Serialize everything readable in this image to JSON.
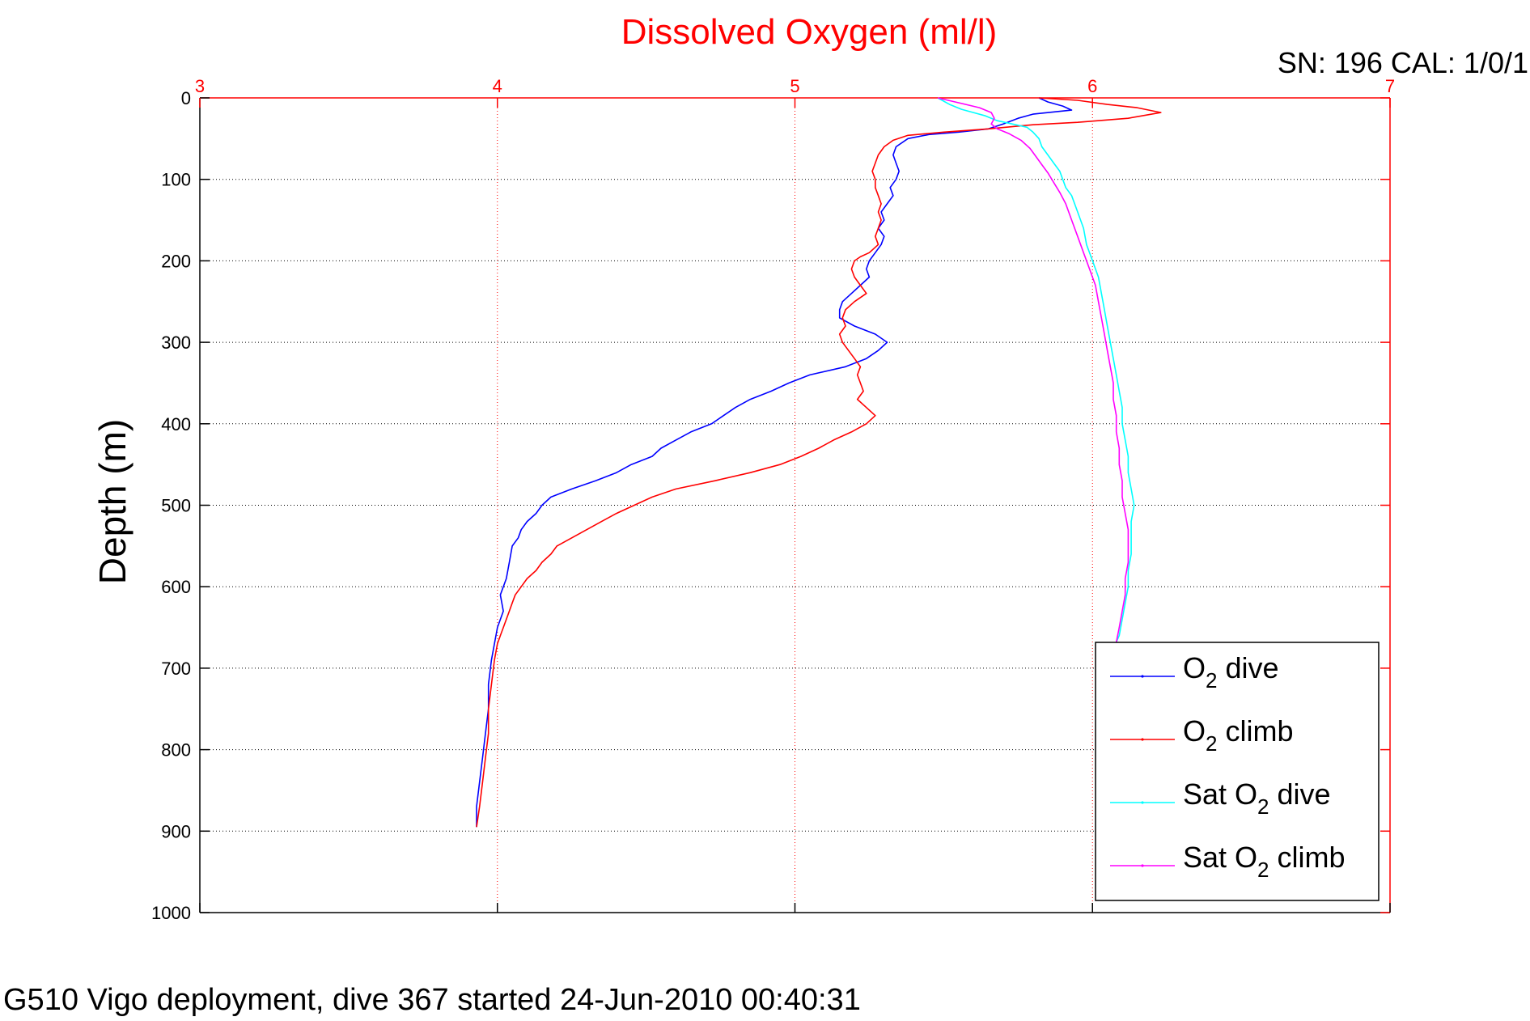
{
  "chart_data": {
    "type": "line",
    "title": "Dissolved Oxygen (ml/l)",
    "cal_label": "SN: 196  CAL: 1/0/1",
    "ylabel": "Depth (m)",
    "footer": "G510 Vigo deployment, dive 367 started 24-Jun-2010 00:40:31",
    "xlim": [
      3,
      7
    ],
    "ylim": [
      0,
      1000
    ],
    "y_reversed": true,
    "x_axis_position": "top",
    "grid": true,
    "legend_position": "bottom-right",
    "xticks": [
      3,
      4,
      5,
      6,
      7
    ],
    "xtick_labels": [
      "3",
      "4",
      "5",
      "6",
      "7"
    ],
    "yticks": [
      0,
      100,
      200,
      300,
      400,
      500,
      600,
      700,
      800,
      900,
      1000
    ],
    "ytick_labels": [
      "0",
      "100",
      "200",
      "300",
      "400",
      "500",
      "600",
      "700",
      "800",
      "900",
      "1000"
    ],
    "colors": {
      "title": "#ff0000",
      "x_axis": "#ff0000",
      "grid_x": "#ff0000",
      "grid_y": "#000000",
      "text": "#000000"
    },
    "series": [
      {
        "legend_main": "O",
        "legend_sub": "2",
        "legend_suffix": " dive",
        "color": "#0000ff",
        "points": [
          [
            5.82,
            0
          ],
          [
            5.85,
            5
          ],
          [
            5.9,
            10
          ],
          [
            5.93,
            15
          ],
          [
            5.8,
            20
          ],
          [
            5.75,
            25
          ],
          [
            5.7,
            32
          ],
          [
            5.65,
            38
          ],
          [
            5.55,
            42
          ],
          [
            5.45,
            45
          ],
          [
            5.38,
            50
          ],
          [
            5.34,
            60
          ],
          [
            5.33,
            70
          ],
          [
            5.34,
            80
          ],
          [
            5.35,
            90
          ],
          [
            5.34,
            100
          ],
          [
            5.32,
            110
          ],
          [
            5.33,
            120
          ],
          [
            5.31,
            130
          ],
          [
            5.29,
            140
          ],
          [
            5.3,
            150
          ],
          [
            5.28,
            160
          ],
          [
            5.3,
            170
          ],
          [
            5.29,
            180
          ],
          [
            5.27,
            190
          ],
          [
            5.25,
            200
          ],
          [
            5.24,
            210
          ],
          [
            5.25,
            220
          ],
          [
            5.22,
            230
          ],
          [
            5.19,
            240
          ],
          [
            5.16,
            250
          ],
          [
            5.15,
            260
          ],
          [
            5.15,
            270
          ],
          [
            5.2,
            280
          ],
          [
            5.27,
            290
          ],
          [
            5.31,
            300
          ],
          [
            5.28,
            310
          ],
          [
            5.24,
            320
          ],
          [
            5.17,
            330
          ],
          [
            5.05,
            340
          ],
          [
            4.98,
            350
          ],
          [
            4.92,
            360
          ],
          [
            4.85,
            370
          ],
          [
            4.8,
            380
          ],
          [
            4.76,
            390
          ],
          [
            4.72,
            400
          ],
          [
            4.65,
            410
          ],
          [
            4.6,
            420
          ],
          [
            4.55,
            430
          ],
          [
            4.52,
            440
          ],
          [
            4.45,
            450
          ],
          [
            4.4,
            460
          ],
          [
            4.33,
            470
          ],
          [
            4.25,
            480
          ],
          [
            4.18,
            490
          ],
          [
            4.15,
            500
          ],
          [
            4.13,
            510
          ],
          [
            4.1,
            520
          ],
          [
            4.08,
            530
          ],
          [
            4.07,
            540
          ],
          [
            4.05,
            550
          ],
          [
            4.04,
            570
          ],
          [
            4.03,
            590
          ],
          [
            4.01,
            610
          ],
          [
            4.02,
            630
          ],
          [
            4.0,
            650
          ],
          [
            3.99,
            670
          ],
          [
            3.98,
            690
          ],
          [
            3.97,
            720
          ],
          [
            3.97,
            750
          ],
          [
            3.96,
            780
          ],
          [
            3.95,
            810
          ],
          [
            3.94,
            840
          ],
          [
            3.93,
            870
          ],
          [
            3.93,
            895
          ]
        ]
      },
      {
        "legend_main": "O",
        "legend_sub": "2",
        "legend_suffix": " climb",
        "color": "#ff0000",
        "points": [
          [
            5.82,
            0
          ],
          [
            5.95,
            3
          ],
          [
            6.05,
            8
          ],
          [
            6.15,
            12
          ],
          [
            6.23,
            18
          ],
          [
            6.12,
            25
          ],
          [
            5.95,
            30
          ],
          [
            5.8,
            33
          ],
          [
            5.65,
            38
          ],
          [
            5.5,
            42
          ],
          [
            5.38,
            46
          ],
          [
            5.33,
            52
          ],
          [
            5.3,
            60
          ],
          [
            5.28,
            70
          ],
          [
            5.27,
            80
          ],
          [
            5.26,
            90
          ],
          [
            5.27,
            100
          ],
          [
            5.27,
            110
          ],
          [
            5.28,
            120
          ],
          [
            5.29,
            130
          ],
          [
            5.28,
            140
          ],
          [
            5.29,
            150
          ],
          [
            5.28,
            160
          ],
          [
            5.27,
            170
          ],
          [
            5.28,
            180
          ],
          [
            5.25,
            190
          ],
          [
            5.22,
            195
          ],
          [
            5.2,
            200
          ],
          [
            5.19,
            210
          ],
          [
            5.2,
            220
          ],
          [
            5.22,
            230
          ],
          [
            5.24,
            240
          ],
          [
            5.2,
            250
          ],
          [
            5.17,
            260
          ],
          [
            5.16,
            270
          ],
          [
            5.17,
            280
          ],
          [
            5.15,
            290
          ],
          [
            5.16,
            300
          ],
          [
            5.18,
            310
          ],
          [
            5.2,
            320
          ],
          [
            5.22,
            330
          ],
          [
            5.21,
            340
          ],
          [
            5.22,
            350
          ],
          [
            5.23,
            360
          ],
          [
            5.21,
            370
          ],
          [
            5.24,
            380
          ],
          [
            5.27,
            390
          ],
          [
            5.24,
            400
          ],
          [
            5.19,
            410
          ],
          [
            5.13,
            420
          ],
          [
            5.08,
            430
          ],
          [
            5.02,
            440
          ],
          [
            4.95,
            450
          ],
          [
            4.85,
            460
          ],
          [
            4.73,
            470
          ],
          [
            4.6,
            480
          ],
          [
            4.52,
            490
          ],
          [
            4.46,
            500
          ],
          [
            4.4,
            510
          ],
          [
            4.35,
            520
          ],
          [
            4.3,
            530
          ],
          [
            4.25,
            540
          ],
          [
            4.2,
            550
          ],
          [
            4.18,
            560
          ],
          [
            4.15,
            570
          ],
          [
            4.13,
            580
          ],
          [
            4.1,
            590
          ],
          [
            4.08,
            600
          ],
          [
            4.06,
            610
          ],
          [
            4.05,
            620
          ],
          [
            4.04,
            630
          ],
          [
            4.03,
            640
          ],
          [
            4.02,
            650
          ],
          [
            4.01,
            660
          ],
          [
            4.0,
            670
          ],
          [
            3.99,
            690
          ],
          [
            3.98,
            720
          ],
          [
            3.97,
            750
          ],
          [
            3.97,
            780
          ],
          [
            3.96,
            810
          ],
          [
            3.95,
            840
          ],
          [
            3.94,
            870
          ],
          [
            3.93,
            895
          ]
        ]
      },
      {
        "legend_main": "Sat O",
        "legend_sub": "2",
        "legend_suffix": " dive",
        "color": "#00ffff",
        "points": [
          [
            5.48,
            0
          ],
          [
            5.52,
            8
          ],
          [
            5.56,
            14
          ],
          [
            5.6,
            18
          ],
          [
            5.64,
            22
          ],
          [
            5.68,
            28
          ],
          [
            5.73,
            32
          ],
          [
            5.78,
            36
          ],
          [
            5.8,
            42
          ],
          [
            5.82,
            50
          ],
          [
            5.83,
            60
          ],
          [
            5.85,
            70
          ],
          [
            5.87,
            80
          ],
          [
            5.89,
            90
          ],
          [
            5.9,
            100
          ],
          [
            5.91,
            110
          ],
          [
            5.93,
            120
          ],
          [
            5.95,
            140
          ],
          [
            5.97,
            160
          ],
          [
            5.98,
            180
          ],
          [
            6.0,
            200
          ],
          [
            6.02,
            220
          ],
          [
            6.03,
            240
          ],
          [
            6.04,
            260
          ],
          [
            6.05,
            280
          ],
          [
            6.06,
            300
          ],
          [
            6.07,
            320
          ],
          [
            6.08,
            340
          ],
          [
            6.09,
            360
          ],
          [
            6.1,
            380
          ],
          [
            6.1,
            400
          ],
          [
            6.11,
            420
          ],
          [
            6.12,
            440
          ],
          [
            6.12,
            460
          ],
          [
            6.13,
            480
          ],
          [
            6.14,
            500
          ],
          [
            6.13,
            520
          ],
          [
            6.13,
            540
          ],
          [
            6.13,
            560
          ],
          [
            6.12,
            580
          ],
          [
            6.12,
            600
          ],
          [
            6.11,
            620
          ],
          [
            6.1,
            640
          ],
          [
            6.09,
            660
          ],
          [
            6.08,
            668
          ]
        ]
      },
      {
        "legend_main": "Sat O",
        "legend_sub": "2",
        "legend_suffix": " climb",
        "color": "#ff00ff",
        "points": [
          [
            5.48,
            0
          ],
          [
            5.55,
            6
          ],
          [
            5.62,
            12
          ],
          [
            5.66,
            18
          ],
          [
            5.67,
            25
          ],
          [
            5.66,
            32
          ],
          [
            5.68,
            38
          ],
          [
            5.72,
            44
          ],
          [
            5.76,
            52
          ],
          [
            5.79,
            62
          ],
          [
            5.81,
            72
          ],
          [
            5.83,
            82
          ],
          [
            5.85,
            92
          ],
          [
            5.87,
            104
          ],
          [
            5.89,
            116
          ],
          [
            5.91,
            130
          ],
          [
            5.93,
            150
          ],
          [
            5.95,
            170
          ],
          [
            5.97,
            190
          ],
          [
            5.99,
            210
          ],
          [
            6.01,
            230
          ],
          [
            6.02,
            250
          ],
          [
            6.03,
            270
          ],
          [
            6.04,
            290
          ],
          [
            6.05,
            310
          ],
          [
            6.06,
            330
          ],
          [
            6.07,
            350
          ],
          [
            6.07,
            370
          ],
          [
            6.08,
            390
          ],
          [
            6.08,
            410
          ],
          [
            6.09,
            430
          ],
          [
            6.09,
            450
          ],
          [
            6.1,
            470
          ],
          [
            6.1,
            490
          ],
          [
            6.11,
            510
          ],
          [
            6.12,
            530
          ],
          [
            6.12,
            550
          ],
          [
            6.12,
            570
          ],
          [
            6.11,
            590
          ],
          [
            6.11,
            610
          ],
          [
            6.1,
            630
          ],
          [
            6.09,
            650
          ],
          [
            6.08,
            668
          ]
        ]
      }
    ]
  }
}
